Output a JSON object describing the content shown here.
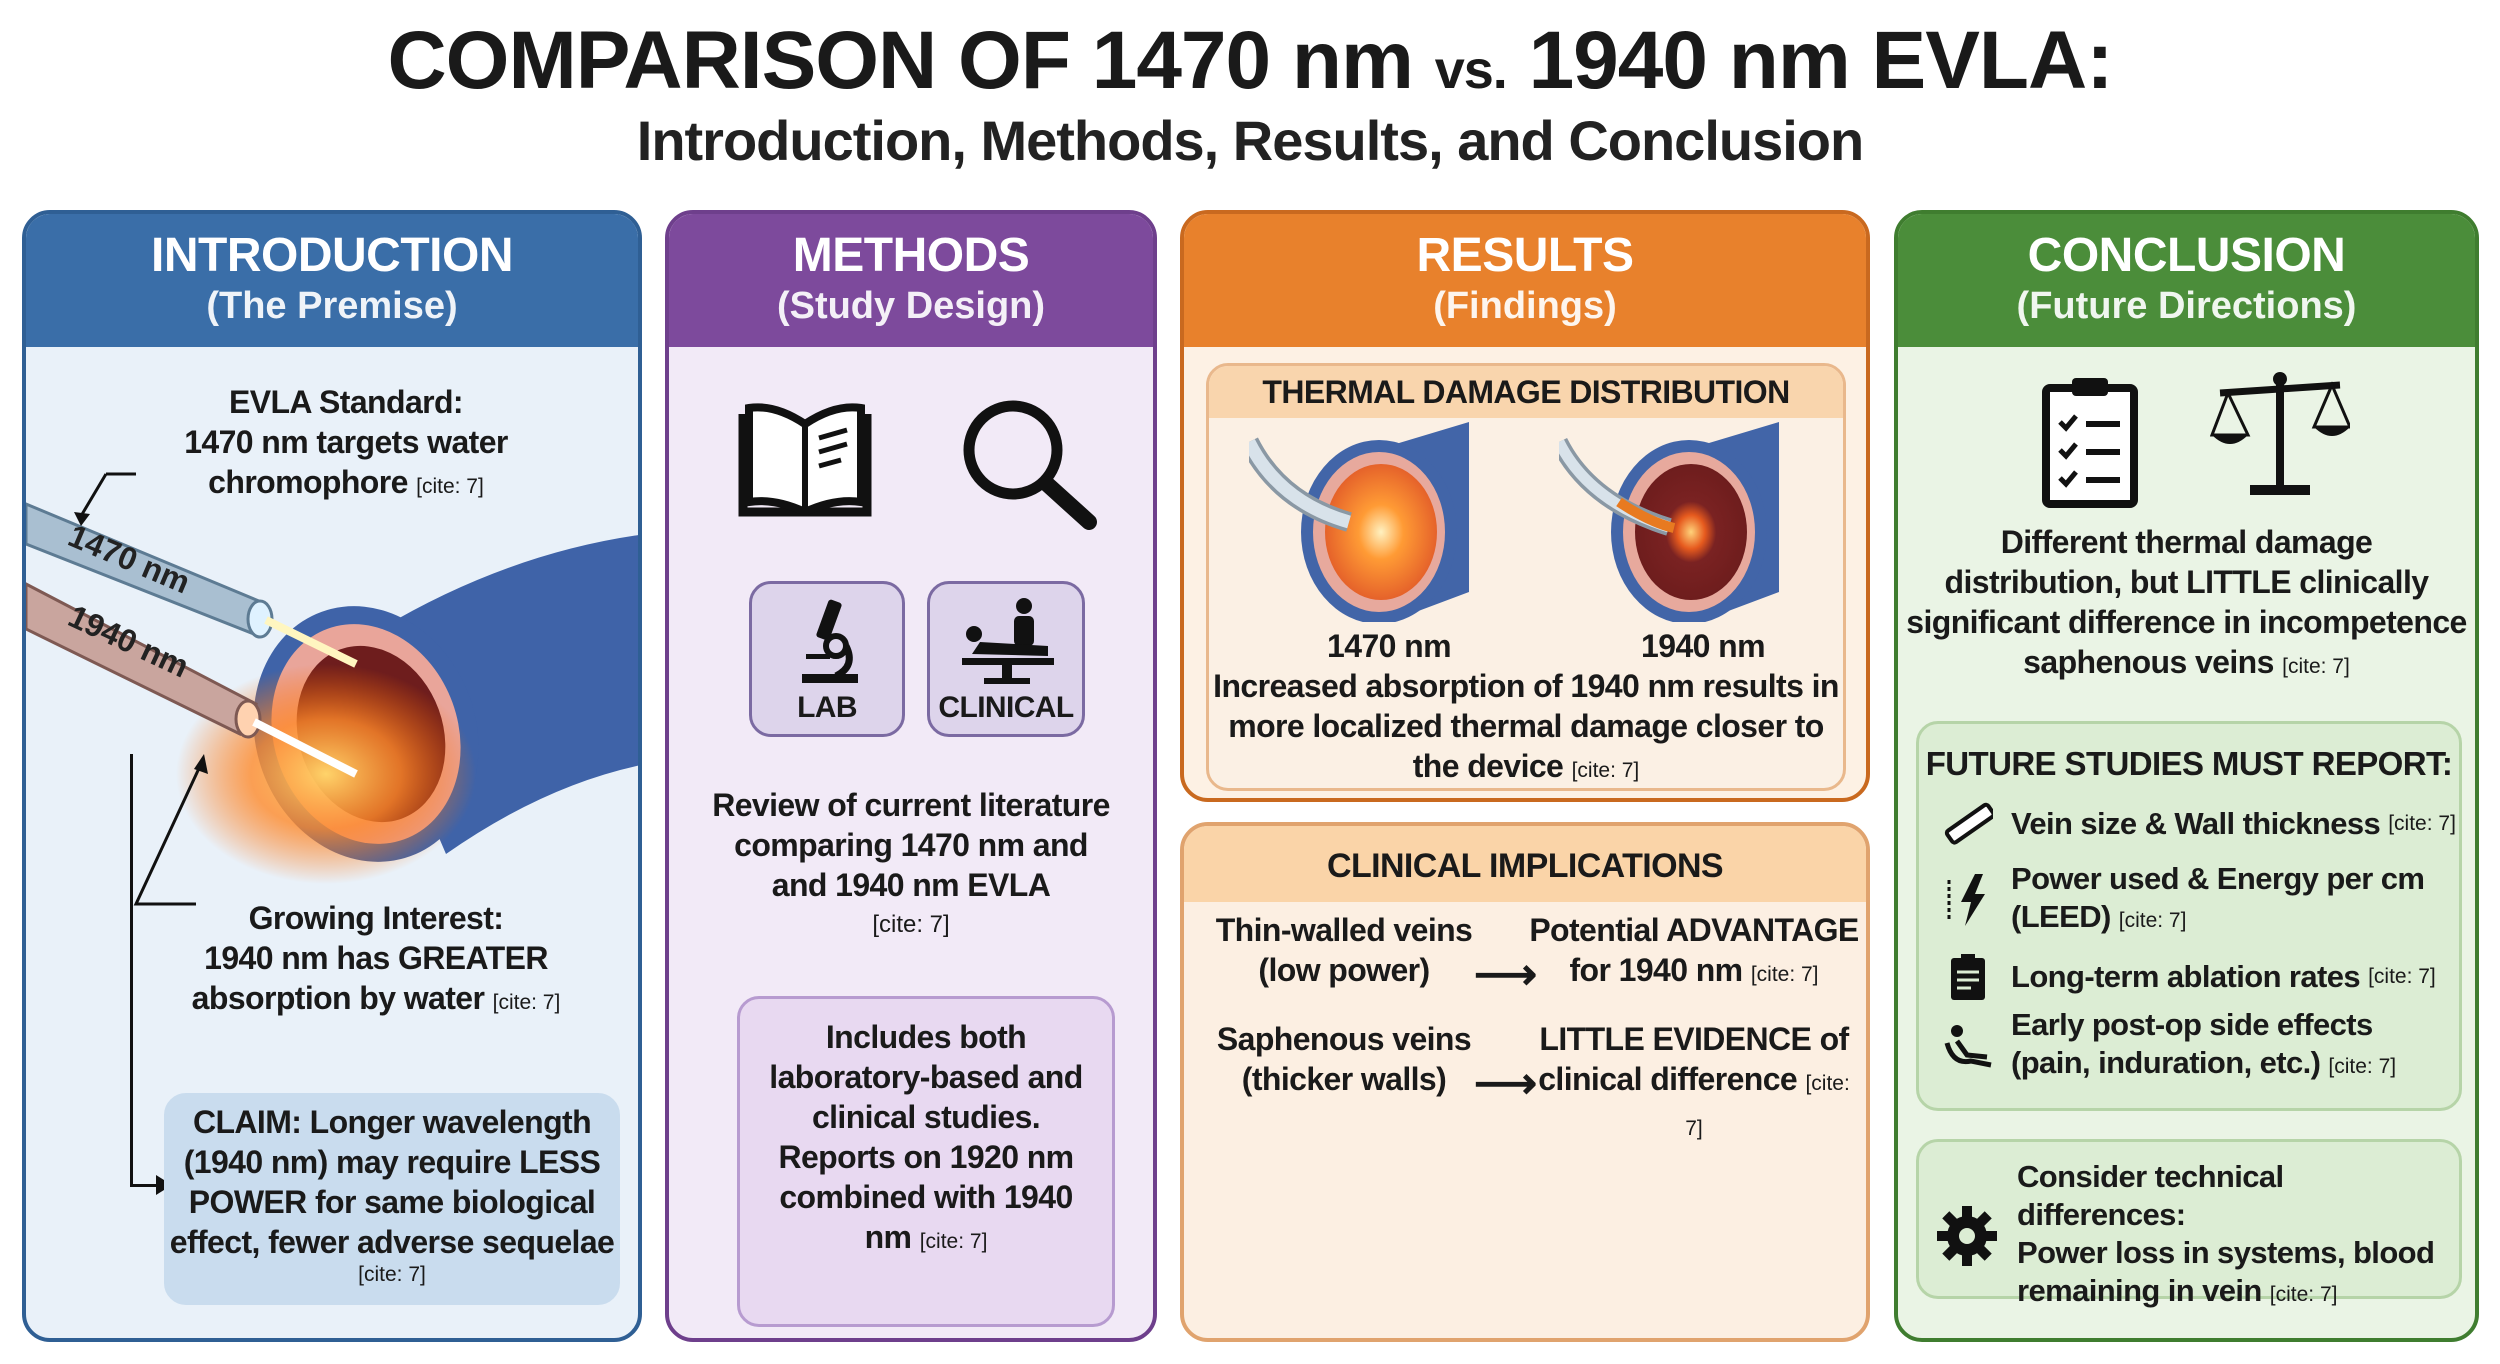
{
  "header": {
    "title_a": "COMPARISON OF 1470 nm ",
    "title_vs": "vs.",
    "title_b": " 1940 nm EVLA:",
    "subtitle": "Introduction, Methods, Results, and Conclusion"
  },
  "colors": {
    "introduction": "#3a6ea8",
    "methods": "#7d4a9c",
    "results": "#e8812c",
    "conclusion": "#4b8d3a"
  },
  "cite": "[cite: 7]",
  "introduction": {
    "title": "INTRODUCTION",
    "subtitle": "(The Premise)",
    "standard": [
      "EVLA Standard:",
      "1470 nm targets water",
      "chromophore"
    ],
    "fiber_labels": [
      "1470 nm",
      "1940 nm"
    ],
    "interest": [
      "Growing Interest:",
      "1940 nm has GREATER",
      "absorption by water"
    ],
    "claim": [
      "CLAIM: Longer wavelength",
      "(1940 nm) may require LESS",
      "POWER for same biological",
      "effect, fewer adverse sequelae"
    ]
  },
  "methods": {
    "title": "METHODS",
    "subtitle": "(Study Design)",
    "icons": [
      "book-icon",
      "magnifier-icon",
      "microscope-icon",
      "patient-bed-icon"
    ],
    "lab": "LAB",
    "clinical": "CLINICAL",
    "review": [
      "Review of current literature",
      "comparing 1470 nm and",
      "and 1940 nm EVLA"
    ],
    "includes": [
      "Includes both",
      "laboratory-based and",
      "clinical studies.",
      "Reports on 1920 nm",
      "combined with 1940",
      "nm"
    ]
  },
  "results": {
    "title": "RESULTS",
    "subtitle": "(Findings)",
    "thermal": {
      "title": "THERMAL DAMAGE DISTRIBUTION",
      "labels": [
        "1470 nm",
        "1940 nm"
      ],
      "text": [
        "Increased absorption of 1940 nm results in",
        "more localized thermal damage closer to",
        "the device"
      ]
    },
    "clinical": {
      "title": "CLINICAL IMPLICATIONS",
      "rows": [
        {
          "left": [
            "Thin-walled veins",
            "(low power)"
          ],
          "right": [
            "Potential ADVANTAGE",
            "for 1940 nm"
          ]
        },
        {
          "left": [
            "Saphenous veins",
            "(thicker walls)"
          ],
          "right": [
            "LITTLE EVIDENCE of",
            "clinical difference"
          ]
        }
      ]
    }
  },
  "conclusion": {
    "title": "CONCLUSION",
    "subtitle": "(Future Directions)",
    "icons": [
      "clipboard-checklist-icon",
      "scales-icon"
    ],
    "summary": [
      "Different thermal damage",
      "distribution, but LITTLE clinically",
      "significant difference in incompetence",
      "saphenous veins"
    ],
    "future": {
      "title": "FUTURE STUDIES MUST REPORT:",
      "items": [
        {
          "icon": "ruler-icon",
          "lines": [
            "Vein size & Wall thickness"
          ]
        },
        {
          "icon": "lightning-icon",
          "lines": [
            "Power used & Energy per cm",
            "(LEED)"
          ]
        },
        {
          "icon": "clipboard-icon",
          "lines": [
            "Long-term ablation rates"
          ]
        },
        {
          "icon": "reclining-patient-icon",
          "lines": [
            "Early post-op side effects",
            "(pain, induration, etc.)"
          ]
        }
      ]
    },
    "technical": {
      "icon": "gear-icon",
      "lines": [
        "Consider technical differences:",
        "Power loss in systems, blood",
        "remaining in vein"
      ]
    }
  }
}
